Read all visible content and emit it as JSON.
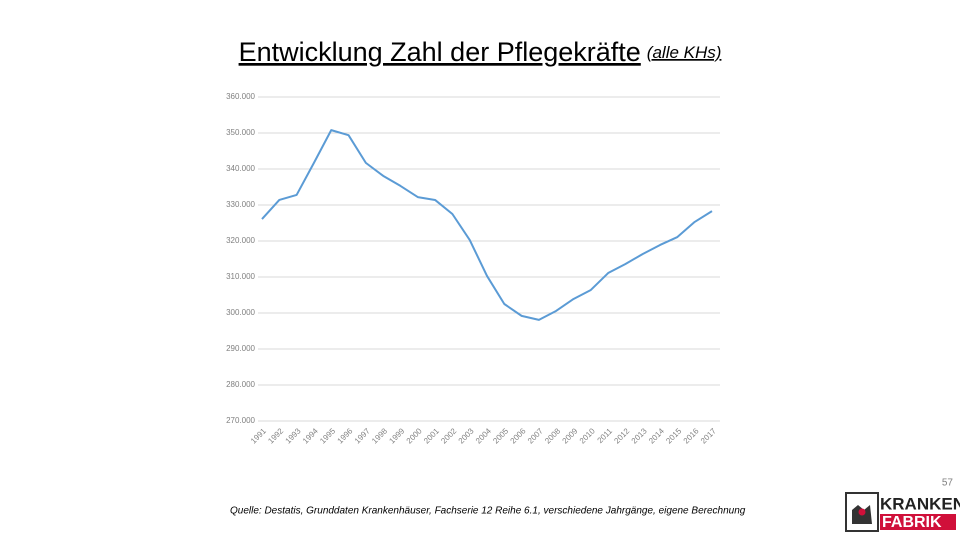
{
  "chart_data": {
    "type": "line",
    "title": "Entwicklung Zahl der Pflegekräfte",
    "subtitle": "(alle KHs)",
    "categories": [
      "1991",
      "1992",
      "1993",
      "1994",
      "1995",
      "1996",
      "1997",
      "1998",
      "1999",
      "2000",
      "2001",
      "2002",
      "2003",
      "2004",
      "2005",
      "2006",
      "2007",
      "2008",
      "2009",
      "2010",
      "2011",
      "2012",
      "2013",
      "2014",
      "2015",
      "2016",
      "2017"
    ],
    "values": [
      326100,
      331400,
      332800,
      341700,
      350800,
      349400,
      341700,
      338100,
      335300,
      332200,
      331400,
      327500,
      320300,
      310300,
      302500,
      299200,
      298100,
      300600,
      303900,
      306400,
      311100,
      313600,
      316400,
      318900,
      321100,
      325300,
      328300
    ],
    "color": "#5b9bd5",
    "ylim": [
      270000,
      360000
    ],
    "yticks": [
      {
        "value": 270000,
        "label": "270.000"
      },
      {
        "value": 280000,
        "label": "280.000"
      },
      {
        "value": 290000,
        "label": "290.000"
      },
      {
        "value": 300000,
        "label": "300.000"
      },
      {
        "value": 310000,
        "label": "310.000"
      },
      {
        "value": 320000,
        "label": "320.000"
      },
      {
        "value": 330000,
        "label": "330.000"
      },
      {
        "value": 340000,
        "label": "340.000"
      },
      {
        "value": 350000,
        "label": "350.000"
      },
      {
        "value": 360000,
        "label": "360.000"
      }
    ],
    "grid": true
  },
  "footer": {
    "source": "Quelle: Destatis, Grunddaten Krankenhäuser, Fachserie 12 Reihe 6.1, verschiedene Jahrgänge, eigene Berechnung",
    "page_number": "57"
  },
  "logo": {
    "top": "KRANKEN",
    "bottom": "FABRIK"
  }
}
